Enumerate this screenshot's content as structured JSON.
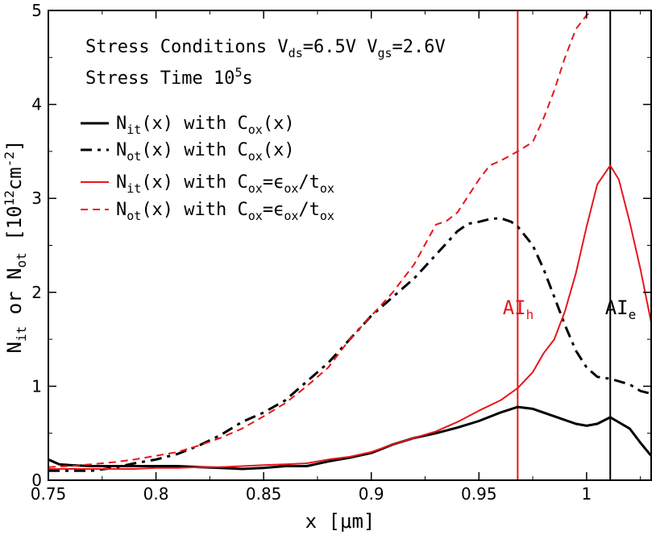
{
  "chart_data": {
    "type": "line",
    "xlabel": "x [μm]",
    "ylabel": "N",
    "ylabel_sub1": "it",
    "ylabel_mid": " or N",
    "ylabel_sub2": "ot",
    "ylabel_unit": " [10",
    "ylabel_exp1": "12",
    "ylabel_unit2": "cm",
    "ylabel_exp2": "-2",
    "ylabel_close": "]",
    "xlim": [
      0.75,
      1.03
    ],
    "ylim": [
      0,
      5
    ],
    "x_ticks": [
      {
        "value": 0.75,
        "label": "0.75"
      },
      {
        "value": 0.8,
        "label": "0.8"
      },
      {
        "value": 0.85,
        "label": "0.85"
      },
      {
        "value": 0.9,
        "label": "0.9"
      },
      {
        "value": 0.95,
        "label": "0.95"
      },
      {
        "value": 1.0,
        "label": "1"
      }
    ],
    "y_ticks": [
      {
        "value": 0,
        "label": "0"
      },
      {
        "value": 1,
        "label": "1"
      },
      {
        "value": 2,
        "label": "2"
      },
      {
        "value": 3,
        "label": "3"
      },
      {
        "value": 4,
        "label": "4"
      },
      {
        "value": 5,
        "label": "5"
      }
    ],
    "annotations": {
      "line1_prefix": "Stress Conditions V",
      "line1_sub1": "ds",
      "line1_mid": "=6.5V V",
      "line1_sub2": "gs",
      "line1_end": "=2.6V",
      "line2_prefix": "Stress Time 10",
      "line2_sup": "5",
      "line2_end": "s",
      "vline_h": {
        "x": 0.968,
        "text": "AI",
        "sub": "h",
        "color": "#e8151b"
      },
      "vline_e": {
        "x": 1.011,
        "text": "AI",
        "sub": "e",
        "color": "#000000"
      }
    },
    "legend_position": "upper-left",
    "grid": false,
    "series": [
      {
        "legend": [
          "N",
          "it",
          "(x) with C",
          "ox",
          "(x)"
        ],
        "color": "#000000",
        "dash": "solid",
        "width": 3,
        "x": [
          0.75,
          0.755,
          0.76,
          0.77,
          0.78,
          0.79,
          0.8,
          0.81,
          0.82,
          0.83,
          0.84,
          0.85,
          0.86,
          0.87,
          0.88,
          0.89,
          0.9,
          0.91,
          0.92,
          0.93,
          0.94,
          0.95,
          0.96,
          0.968,
          0.975,
          0.985,
          0.995,
          1.0,
          1.005,
          1.011,
          1.02,
          1.025,
          1.03
        ],
        "y": [
          0.22,
          0.17,
          0.16,
          0.15,
          0.15,
          0.15,
          0.15,
          0.15,
          0.14,
          0.13,
          0.12,
          0.13,
          0.15,
          0.15,
          0.2,
          0.24,
          0.29,
          0.38,
          0.45,
          0.5,
          0.56,
          0.63,
          0.72,
          0.78,
          0.76,
          0.68,
          0.6,
          0.58,
          0.6,
          0.67,
          0.55,
          0.4,
          0.26
        ]
      },
      {
        "legend": [
          "N",
          "ot",
          "(x) with C",
          "ox",
          "(x)"
        ],
        "color": "#000000",
        "dash": "dashdot",
        "width": 3,
        "x": [
          0.75,
          0.76,
          0.77,
          0.78,
          0.79,
          0.8,
          0.81,
          0.82,
          0.83,
          0.84,
          0.85,
          0.86,
          0.87,
          0.88,
          0.89,
          0.9,
          0.91,
          0.92,
          0.93,
          0.94,
          0.945,
          0.95,
          0.955,
          0.96,
          0.965,
          0.968,
          0.975,
          0.98,
          0.985,
          0.99,
          0.995,
          1.0,
          1.005,
          1.011,
          1.02,
          1.025,
          1.03
        ],
        "y": [
          0.1,
          0.1,
          0.1,
          0.13,
          0.18,
          0.22,
          0.28,
          0.37,
          0.48,
          0.62,
          0.72,
          0.85,
          1.05,
          1.25,
          1.5,
          1.75,
          1.95,
          2.15,
          2.4,
          2.65,
          2.73,
          2.75,
          2.78,
          2.79,
          2.75,
          2.7,
          2.5,
          2.25,
          1.95,
          1.65,
          1.38,
          1.2,
          1.1,
          1.08,
          1.02,
          0.95,
          0.92
        ]
      },
      {
        "legend": [
          "N",
          "it",
          "(x) with C",
          "ox",
          "=ϵ",
          "ox",
          "/t",
          "ox"
        ],
        "color": "#e8151b",
        "dash": "solid",
        "width": 2,
        "x": [
          0.75,
          0.76,
          0.77,
          0.78,
          0.79,
          0.8,
          0.81,
          0.82,
          0.83,
          0.84,
          0.85,
          0.86,
          0.87,
          0.88,
          0.89,
          0.9,
          0.91,
          0.92,
          0.93,
          0.94,
          0.95,
          0.96,
          0.968,
          0.975,
          0.98,
          0.985,
          0.99,
          0.995,
          1.0,
          1.005,
          1.011,
          1.015,
          1.02,
          1.025,
          1.03
        ],
        "y": [
          0.12,
          0.12,
          0.12,
          0.12,
          0.12,
          0.13,
          0.13,
          0.14,
          0.14,
          0.15,
          0.16,
          0.17,
          0.18,
          0.22,
          0.25,
          0.3,
          0.38,
          0.45,
          0.52,
          0.62,
          0.74,
          0.85,
          0.98,
          1.15,
          1.35,
          1.5,
          1.8,
          2.2,
          2.7,
          3.15,
          3.35,
          3.2,
          2.75,
          2.25,
          1.68
        ]
      },
      {
        "legend": [
          "N",
          "ot",
          "(x) with C",
          "ox",
          "=ϵ",
          "ox",
          "/t",
          "ox"
        ],
        "color": "#e8151b",
        "dash": "dashed",
        "width": 2,
        "x": [
          0.75,
          0.76,
          0.77,
          0.78,
          0.79,
          0.8,
          0.81,
          0.82,
          0.83,
          0.84,
          0.85,
          0.86,
          0.87,
          0.88,
          0.89,
          0.9,
          0.91,
          0.92,
          0.93,
          0.935,
          0.94,
          0.95,
          0.955,
          0.96,
          0.968,
          0.975,
          0.98,
          0.985,
          0.99,
          0.995,
          1.0,
          1.003
        ],
        "y": [
          0.14,
          0.15,
          0.17,
          0.19,
          0.22,
          0.26,
          0.3,
          0.37,
          0.45,
          0.55,
          0.68,
          0.82,
          1.0,
          1.2,
          1.5,
          1.75,
          2.0,
          2.3,
          2.72,
          2.76,
          2.85,
          3.2,
          3.35,
          3.4,
          3.5,
          3.6,
          3.85,
          4.15,
          4.5,
          4.8,
          4.95,
          5.0
        ]
      }
    ]
  }
}
